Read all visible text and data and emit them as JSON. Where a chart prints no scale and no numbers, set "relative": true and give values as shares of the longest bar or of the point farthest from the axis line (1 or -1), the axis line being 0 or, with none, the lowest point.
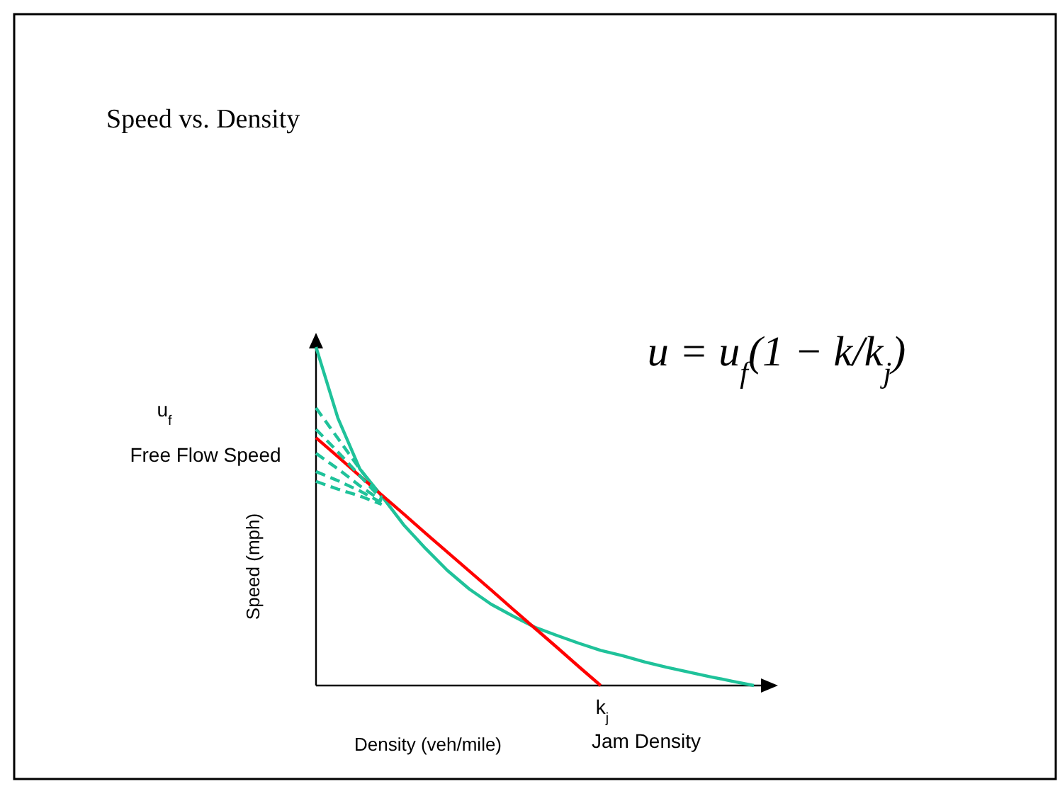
{
  "chart_data": {
    "type": "line",
    "title": "Speed vs. Density",
    "xlabel": "Density (veh/mile)",
    "ylabel": "Speed (mph)",
    "relative": true,
    "annotations": [
      "u = u$_{f}$(1 − k/k$_{j}$)",
      "u$_{f}$",
      "Free Flow Speed",
      "k$_{j}$",
      "Jam Density"
    ],
    "categories": [
      null,
      null,
      null,
      null,
      null,
      null,
      null,
      null,
      null,
      null,
      null,
      null,
      null,
      null,
      null,
      null,
      null,
      null,
      null,
      null,
      null
    ],
    "series": [
      {
        "color": "#1fc29a",
        "values": [
          1,
          0.79,
          0.64,
          0.56,
          0.475,
          0.405,
          0.34,
          0.285,
          0.24,
          0.205,
          0.172,
          0.148,
          0.125,
          0.104,
          0.088,
          0.07,
          0.054,
          0.04,
          0.026,
          0.013,
          0
        ]
      },
      {
        "color": "#ff0000",
        "values": [
          0.732,
          0.676,
          0.619,
          0.563,
          0.507,
          0.45,
          0.394,
          0.338,
          0.282,
          0.225,
          0.169,
          0.113,
          0.056,
          0,
          null,
          null,
          null,
          null,
          null,
          null,
          null
        ]
      },
      {
        "color": "#1fc29a",
        "line_style": "dashed",
        "values": [
          0.82,
          0.73,
          0.64,
          0.555,
          null,
          null,
          null,
          null,
          null,
          null,
          null,
          null,
          null,
          null,
          null,
          null,
          null,
          null,
          null,
          null,
          null
        ]
      },
      {
        "color": "#1fc29a",
        "line_style": "dashed",
        "values": [
          0.757,
          0.69,
          0.62,
          0.55,
          null,
          null,
          null,
          null,
          null,
          null,
          null,
          null,
          null,
          null,
          null,
          null,
          null,
          null,
          null,
          null,
          null
        ]
      },
      {
        "color": "#1fc29a",
        "line_style": "dashed",
        "values": [
          0.686,
          0.64,
          0.59,
          0.545,
          null,
          null,
          null,
          null,
          null,
          null,
          null,
          null,
          null,
          null,
          null,
          null,
          null,
          null,
          null,
          null,
          null
        ]
      },
      {
        "color": "#1fc29a",
        "line_style": "dashed",
        "values": [
          0.632,
          0.605,
          0.575,
          0.54,
          null,
          null,
          null,
          null,
          null,
          null,
          null,
          null,
          null,
          null,
          null,
          null,
          null,
          null,
          null,
          null,
          null
        ]
      },
      {
        "color": "#1fc29a",
        "line_style": "dashed",
        "values": [
          0.603,
          0.58,
          0.56,
          0.535,
          null,
          null,
          null,
          null,
          null,
          null,
          null,
          null,
          null,
          null,
          null,
          null,
          null,
          null,
          null,
          null,
          null
        ]
      }
    ]
  }
}
